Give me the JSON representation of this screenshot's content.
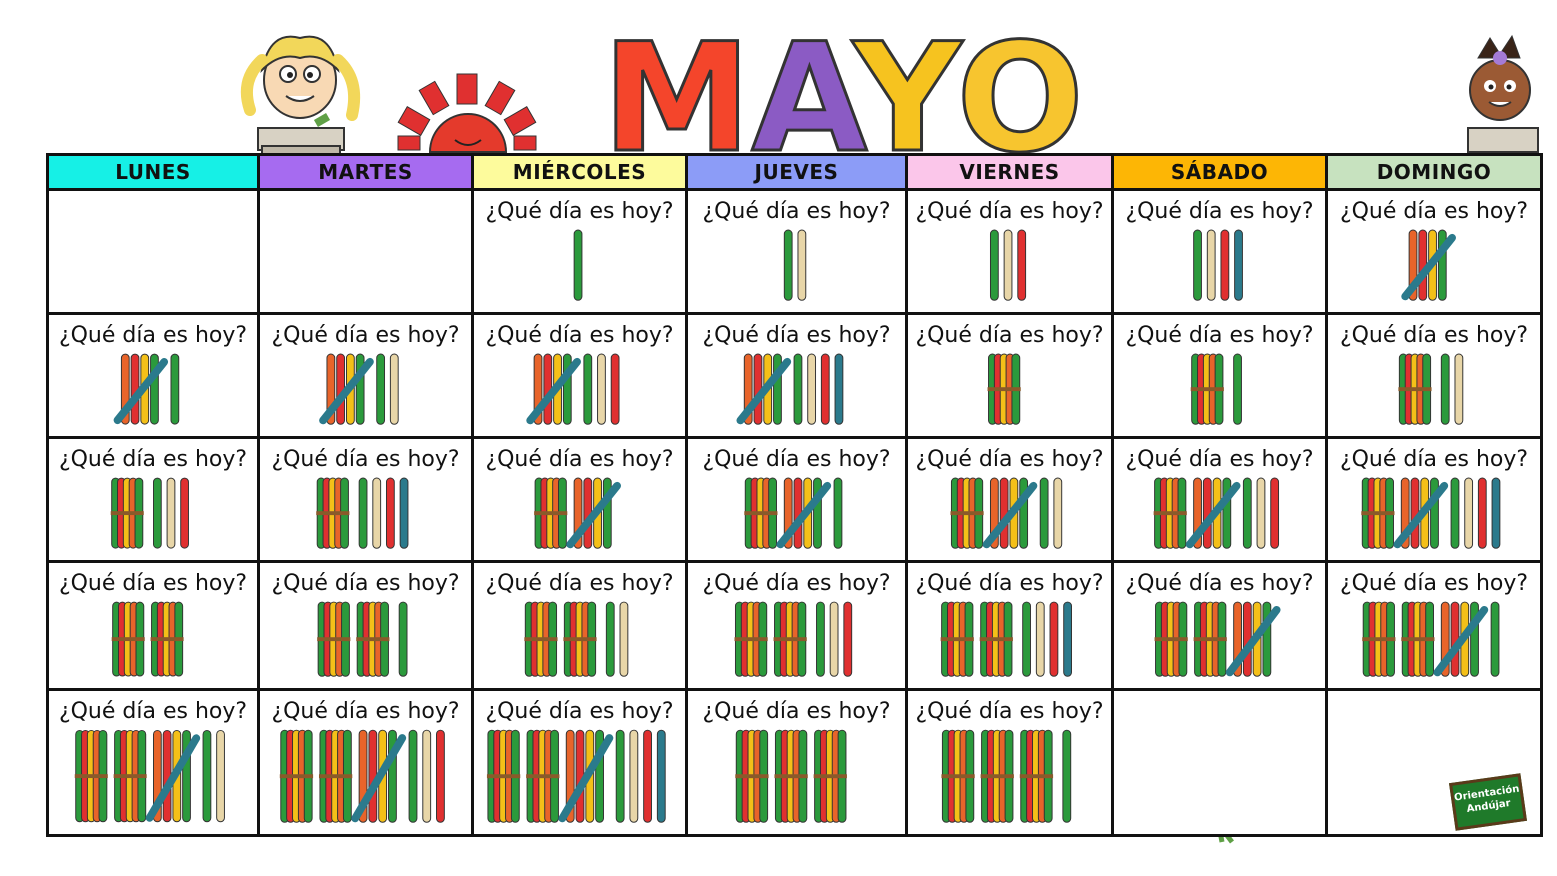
{
  "title": "MAYO",
  "title_colors": [
    "#f4452b",
    "#8b5bc4",
    "#f6c31f",
    "#f7c52f"
  ],
  "days": [
    {
      "label": "LUNES",
      "color": "#16f0e6"
    },
    {
      "label": "MARTES",
      "color": "#a66bf0"
    },
    {
      "label": "MIÉRCOLES",
      "color": "#fdfb9c"
    },
    {
      "label": "JUEVES",
      "color": "#8c9cf7"
    },
    {
      "label": "VIERNES",
      "color": "#fbc6ea"
    },
    {
      "label": "SÁBADO",
      "color": "#fdb605"
    },
    {
      "label": "DOMINGO",
      "color": "#c7e2bf"
    }
  ],
  "prompt": "¿Qué día es hoy?",
  "stick_colors": [
    "#e8642a",
    "#e03030",
    "#f4c018",
    "#2b9a3c",
    "#8e52b5",
    "#e8d6a8",
    "#2b7a8c"
  ],
  "weeks": [
    [
      null,
      null,
      1,
      2,
      3,
      4,
      5
    ],
    [
      6,
      7,
      8,
      9,
      10,
      11,
      12
    ],
    [
      13,
      14,
      15,
      16,
      17,
      18,
      19
    ],
    [
      20,
      21,
      22,
      23,
      24,
      25,
      26
    ],
    [
      27,
      28,
      29,
      30,
      31,
      null,
      null
    ]
  ],
  "logo_text": "Orientación Andújar"
}
